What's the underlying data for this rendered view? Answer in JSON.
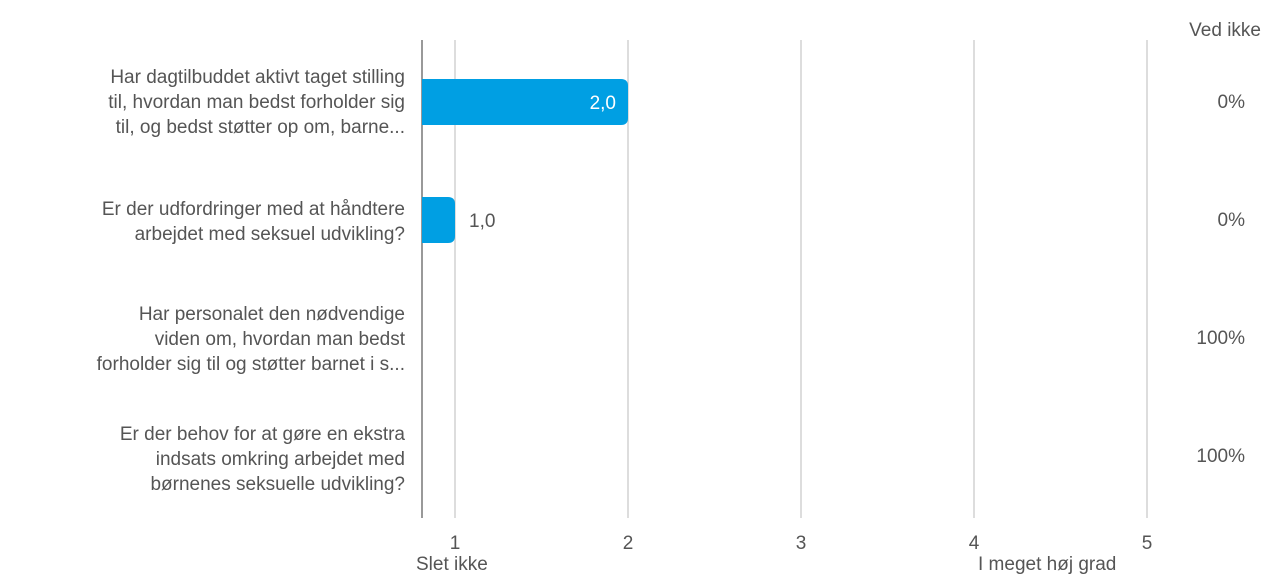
{
  "chart_data": {
    "type": "bar",
    "orientation": "horizontal",
    "categories": [
      "Har dagtilbuddet aktivt taget stilling til, hvordan man bedst forholder sig til, og bedst støtter op om, barne...",
      "Er der udfordringer med at håndtere arbejdet med seksuel udvikling?",
      "Har personalet den nødvendige viden om, hvordan man bedst forholder sig til og støtter barnet i s...",
      "Er der behov for at gøre en ekstra indsats omkring arbejdet med børnenes seksuelle udvikling?"
    ],
    "category_lines": [
      [
        "Har dagtilbuddet aktivt taget stilling",
        "til, hvordan man bedst forholder sig",
        "til, og bedst støtter op om, barne..."
      ],
      [
        "Er der udfordringer med at håndtere",
        "arbejdet med seksuel udvikling?"
      ],
      [
        "Har personalet den nødvendige",
        "viden om, hvordan man bedst",
        "forholder sig til og støtter barnet i s..."
      ],
      [
        "Er der behov for at gøre en ekstra",
        "indsats omkring arbejdet med",
        "børnenes seksuelle udvikling?"
      ]
    ],
    "values": [
      2.0,
      1.0,
      null,
      null
    ],
    "value_labels": [
      "2,0",
      "1,0",
      "",
      ""
    ],
    "xlim": [
      0.8,
      5
    ],
    "ticks": [
      1,
      2,
      3,
      4,
      5
    ],
    "tick_labels": [
      "1",
      "2",
      "3",
      "4",
      "5"
    ],
    "scale_min_label": "Slet ikke",
    "scale_max_label": "I meget høj grad",
    "ved_ikke_header": "Ved ikke",
    "ved_ikke_values": [
      "0%",
      "0%",
      "100%",
      "100%"
    ],
    "grid": true,
    "bar_color": "#009fe3",
    "grid_color": "#bbbbbb",
    "axis_color": "#999999",
    "text_color": "#555555"
  }
}
